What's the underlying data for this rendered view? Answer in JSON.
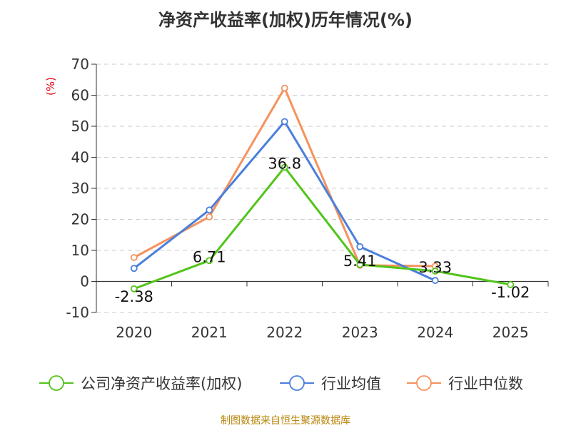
{
  "chart_data": {
    "type": "line",
    "title": "净资产收益率(加权)历年情况(%)",
    "ylabel": "(%)",
    "categories": [
      "2020",
      "2021",
      "2022",
      "2023",
      "2024",
      "2025"
    ],
    "ylim": [
      -10,
      70
    ],
    "yticks": [
      -10,
      0,
      10,
      20,
      30,
      40,
      50,
      60,
      70
    ],
    "grid": true,
    "legend": "bottom",
    "series": [
      {
        "name": "公司净资产收益率(加权)",
        "color": "#52c41a",
        "values": [
          -2.38,
          6.71,
          36.8,
          5.41,
          3.33,
          -1.02
        ],
        "labels": [
          "-2.38",
          "6.71",
          "36.8",
          "5.41",
          "3.33",
          "-1.02"
        ]
      },
      {
        "name": "行业均值",
        "color": "#4a7fdb",
        "values": [
          4.2,
          23.0,
          51.5,
          11.2,
          0.3,
          null
        ]
      },
      {
        "name": "行业中位数",
        "color": "#f5925e",
        "values": [
          7.7,
          20.8,
          62.3,
          5.2,
          4.9,
          null
        ]
      }
    ]
  },
  "source_text": "制图数据来自恒生聚源数据库"
}
